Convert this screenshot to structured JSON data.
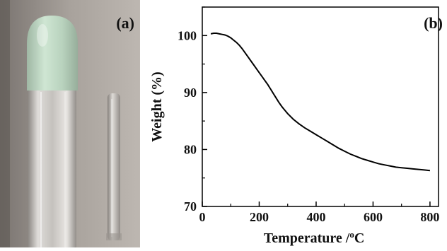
{
  "panel_a": {
    "label": "(a)"
  },
  "chart_data": {
    "type": "line",
    "panel_label": "(b)",
    "title": "",
    "xlabel": "Temperature /",
    "xlabel_unit_sup": "o",
    "xlabel_unit": "C",
    "ylabel": "Weight (%)",
    "xlim": [
      0,
      830
    ],
    "ylim": [
      70,
      105
    ],
    "xticks": [
      0,
      200,
      400,
      600,
      800
    ],
    "yticks": [
      70,
      80,
      90,
      100
    ],
    "grid": false,
    "series": [
      {
        "color": "#000000",
        "x": [
          30,
          40,
          50,
          60,
          70,
          80,
          90,
          100,
          110,
          120,
          130,
          140,
          150,
          160,
          170,
          180,
          190,
          200,
          210,
          220,
          230,
          240,
          250,
          260,
          270,
          280,
          290,
          300,
          320,
          340,
          360,
          380,
          400,
          420,
          440,
          460,
          480,
          500,
          520,
          540,
          560,
          580,
          600,
          620,
          640,
          660,
          680,
          700,
          720,
          740,
          760,
          780,
          800
        ],
        "y": [
          100.3,
          100.4,
          100.4,
          100.3,
          100.2,
          100.1,
          99.9,
          99.6,
          99.2,
          98.8,
          98.3,
          97.7,
          97.0,
          96.3,
          95.6,
          94.9,
          94.2,
          93.5,
          92.8,
          92.1,
          91.4,
          90.6,
          89.8,
          89.0,
          88.2,
          87.5,
          86.9,
          86.3,
          85.3,
          84.5,
          83.8,
          83.2,
          82.6,
          82.0,
          81.4,
          80.8,
          80.2,
          79.7,
          79.2,
          78.8,
          78.4,
          78.1,
          77.8,
          77.5,
          77.3,
          77.1,
          76.9,
          76.8,
          76.7,
          76.6,
          76.5,
          76.4,
          76.3
        ]
      }
    ]
  }
}
